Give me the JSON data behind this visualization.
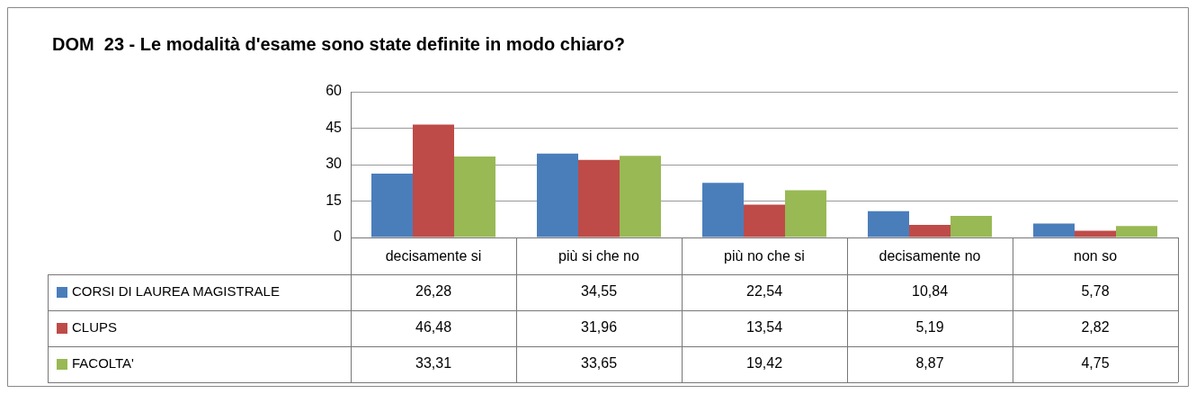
{
  "chart_data": {
    "type": "bar",
    "title": "DOM  23 - Le modalità d'esame sono state definite in modo chiaro?",
    "categories": [
      "decisamente si",
      "più si che no",
      "più no che si",
      "decisamente no",
      "non so"
    ],
    "series": [
      {
        "name": "CORSI DI LAUREA MAGISTRALE",
        "color": "#4a7ebb",
        "values": [
          26.28,
          34.55,
          22.54,
          10.84,
          5.78
        ],
        "value_labels": [
          "26,28",
          "34,55",
          "22,54",
          "10,84",
          "5,78"
        ]
      },
      {
        "name": "CLUPS",
        "color": "#be4b48",
        "values": [
          46.48,
          31.96,
          13.54,
          5.19,
          2.82
        ],
        "value_labels": [
          "46,48",
          "31,96",
          "13,54",
          "5,19",
          "2,82"
        ]
      },
      {
        "name": "FACOLTA'",
        "color": "#98b954",
        "values": [
          33.31,
          33.65,
          19.42,
          8.87,
          4.75
        ],
        "value_labels": [
          "33,31",
          "33,65",
          "19,42",
          "8,87",
          "4,75"
        ]
      }
    ],
    "ylim": [
      0,
      60
    ],
    "yticks": [
      0,
      15,
      30,
      45,
      60
    ],
    "grid": "y",
    "legend": "bottom"
  }
}
